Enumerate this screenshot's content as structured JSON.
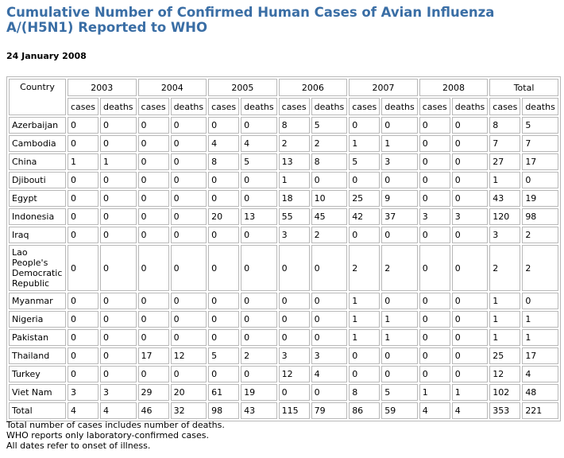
{
  "title": "Cumulative Number of Confirmed Human Cases of Avian Influenza A/(H5N1) Reported to WHO",
  "date": "24 January 2008",
  "table": {
    "country_header": "Country",
    "years": [
      "2003",
      "2004",
      "2005",
      "2006",
      "2007",
      "2008",
      "Total"
    ],
    "sub_headers": [
      "cases",
      "deaths"
    ],
    "rows": [
      {
        "country": "Azerbaijan",
        "values": [
          "0",
          "0",
          "0",
          "0",
          "0",
          "0",
          "8",
          "5",
          "0",
          "0",
          "0",
          "0",
          "8",
          "5"
        ]
      },
      {
        "country": "Cambodia",
        "values": [
          "0",
          "0",
          "0",
          "0",
          "4",
          "4",
          "2",
          "2",
          "1",
          "1",
          "0",
          "0",
          "7",
          "7"
        ]
      },
      {
        "country": "China",
        "values": [
          "1",
          "1",
          "0",
          "0",
          "8",
          "5",
          "13",
          "8",
          "5",
          "3",
          "0",
          "0",
          "27",
          "17"
        ]
      },
      {
        "country": "Djibouti",
        "values": [
          "0",
          "0",
          "0",
          "0",
          "0",
          "0",
          "1",
          "0",
          "0",
          "0",
          "0",
          "0",
          "1",
          "0"
        ]
      },
      {
        "country": "Egypt",
        "values": [
          "0",
          "0",
          "0",
          "0",
          "0",
          "0",
          "18",
          "10",
          "25",
          "9",
          "0",
          "0",
          "43",
          "19"
        ]
      },
      {
        "country": "Indonesia",
        "values": [
          "0",
          "0",
          "0",
          "0",
          "20",
          "13",
          "55",
          "45",
          "42",
          "37",
          "3",
          "3",
          "120",
          "98"
        ]
      },
      {
        "country": "Iraq",
        "values": [
          "0",
          "0",
          "0",
          "0",
          "0",
          "0",
          "3",
          "2",
          "0",
          "0",
          "0",
          "0",
          "3",
          "2"
        ]
      },
      {
        "country": "Lao People's Democratic Republic",
        "values": [
          "0",
          "0",
          "0",
          "0",
          "0",
          "0",
          "0",
          "0",
          "2",
          "2",
          "0",
          "0",
          "2",
          "2"
        ]
      },
      {
        "country": "Myanmar",
        "values": [
          "0",
          "0",
          "0",
          "0",
          "0",
          "0",
          "0",
          "0",
          "1",
          "0",
          "0",
          "0",
          "1",
          "0"
        ]
      },
      {
        "country": "Nigeria",
        "values": [
          "0",
          "0",
          "0",
          "0",
          "0",
          "0",
          "0",
          "0",
          "1",
          "1",
          "0",
          "0",
          "1",
          "1"
        ]
      },
      {
        "country": "Pakistan",
        "values": [
          "0",
          "0",
          "0",
          "0",
          "0",
          "0",
          "0",
          "0",
          "1",
          "1",
          "0",
          "0",
          "1",
          "1"
        ]
      },
      {
        "country": "Thailand",
        "values": [
          "0",
          "0",
          "17",
          "12",
          "5",
          "2",
          "3",
          "3",
          "0",
          "0",
          "0",
          "0",
          "25",
          "17"
        ]
      },
      {
        "country": "Turkey",
        "values": [
          "0",
          "0",
          "0",
          "0",
          "0",
          "0",
          "12",
          "4",
          "0",
          "0",
          "0",
          "0",
          "12",
          "4"
        ]
      },
      {
        "country": "Viet Nam",
        "values": [
          "3",
          "3",
          "29",
          "20",
          "61",
          "19",
          "0",
          "0",
          "8",
          "5",
          "1",
          "1",
          "102",
          "48"
        ]
      },
      {
        "country": "Total",
        "values": [
          "4",
          "4",
          "46",
          "32",
          "98",
          "43",
          "115",
          "79",
          "86",
          "59",
          "4",
          "4",
          "353",
          "221"
        ]
      }
    ]
  },
  "notes": [
    "Total number of cases includes number of deaths.",
    "WHO reports only laboratory-confirmed cases.",
    "All dates refer to onset of illness."
  ]
}
